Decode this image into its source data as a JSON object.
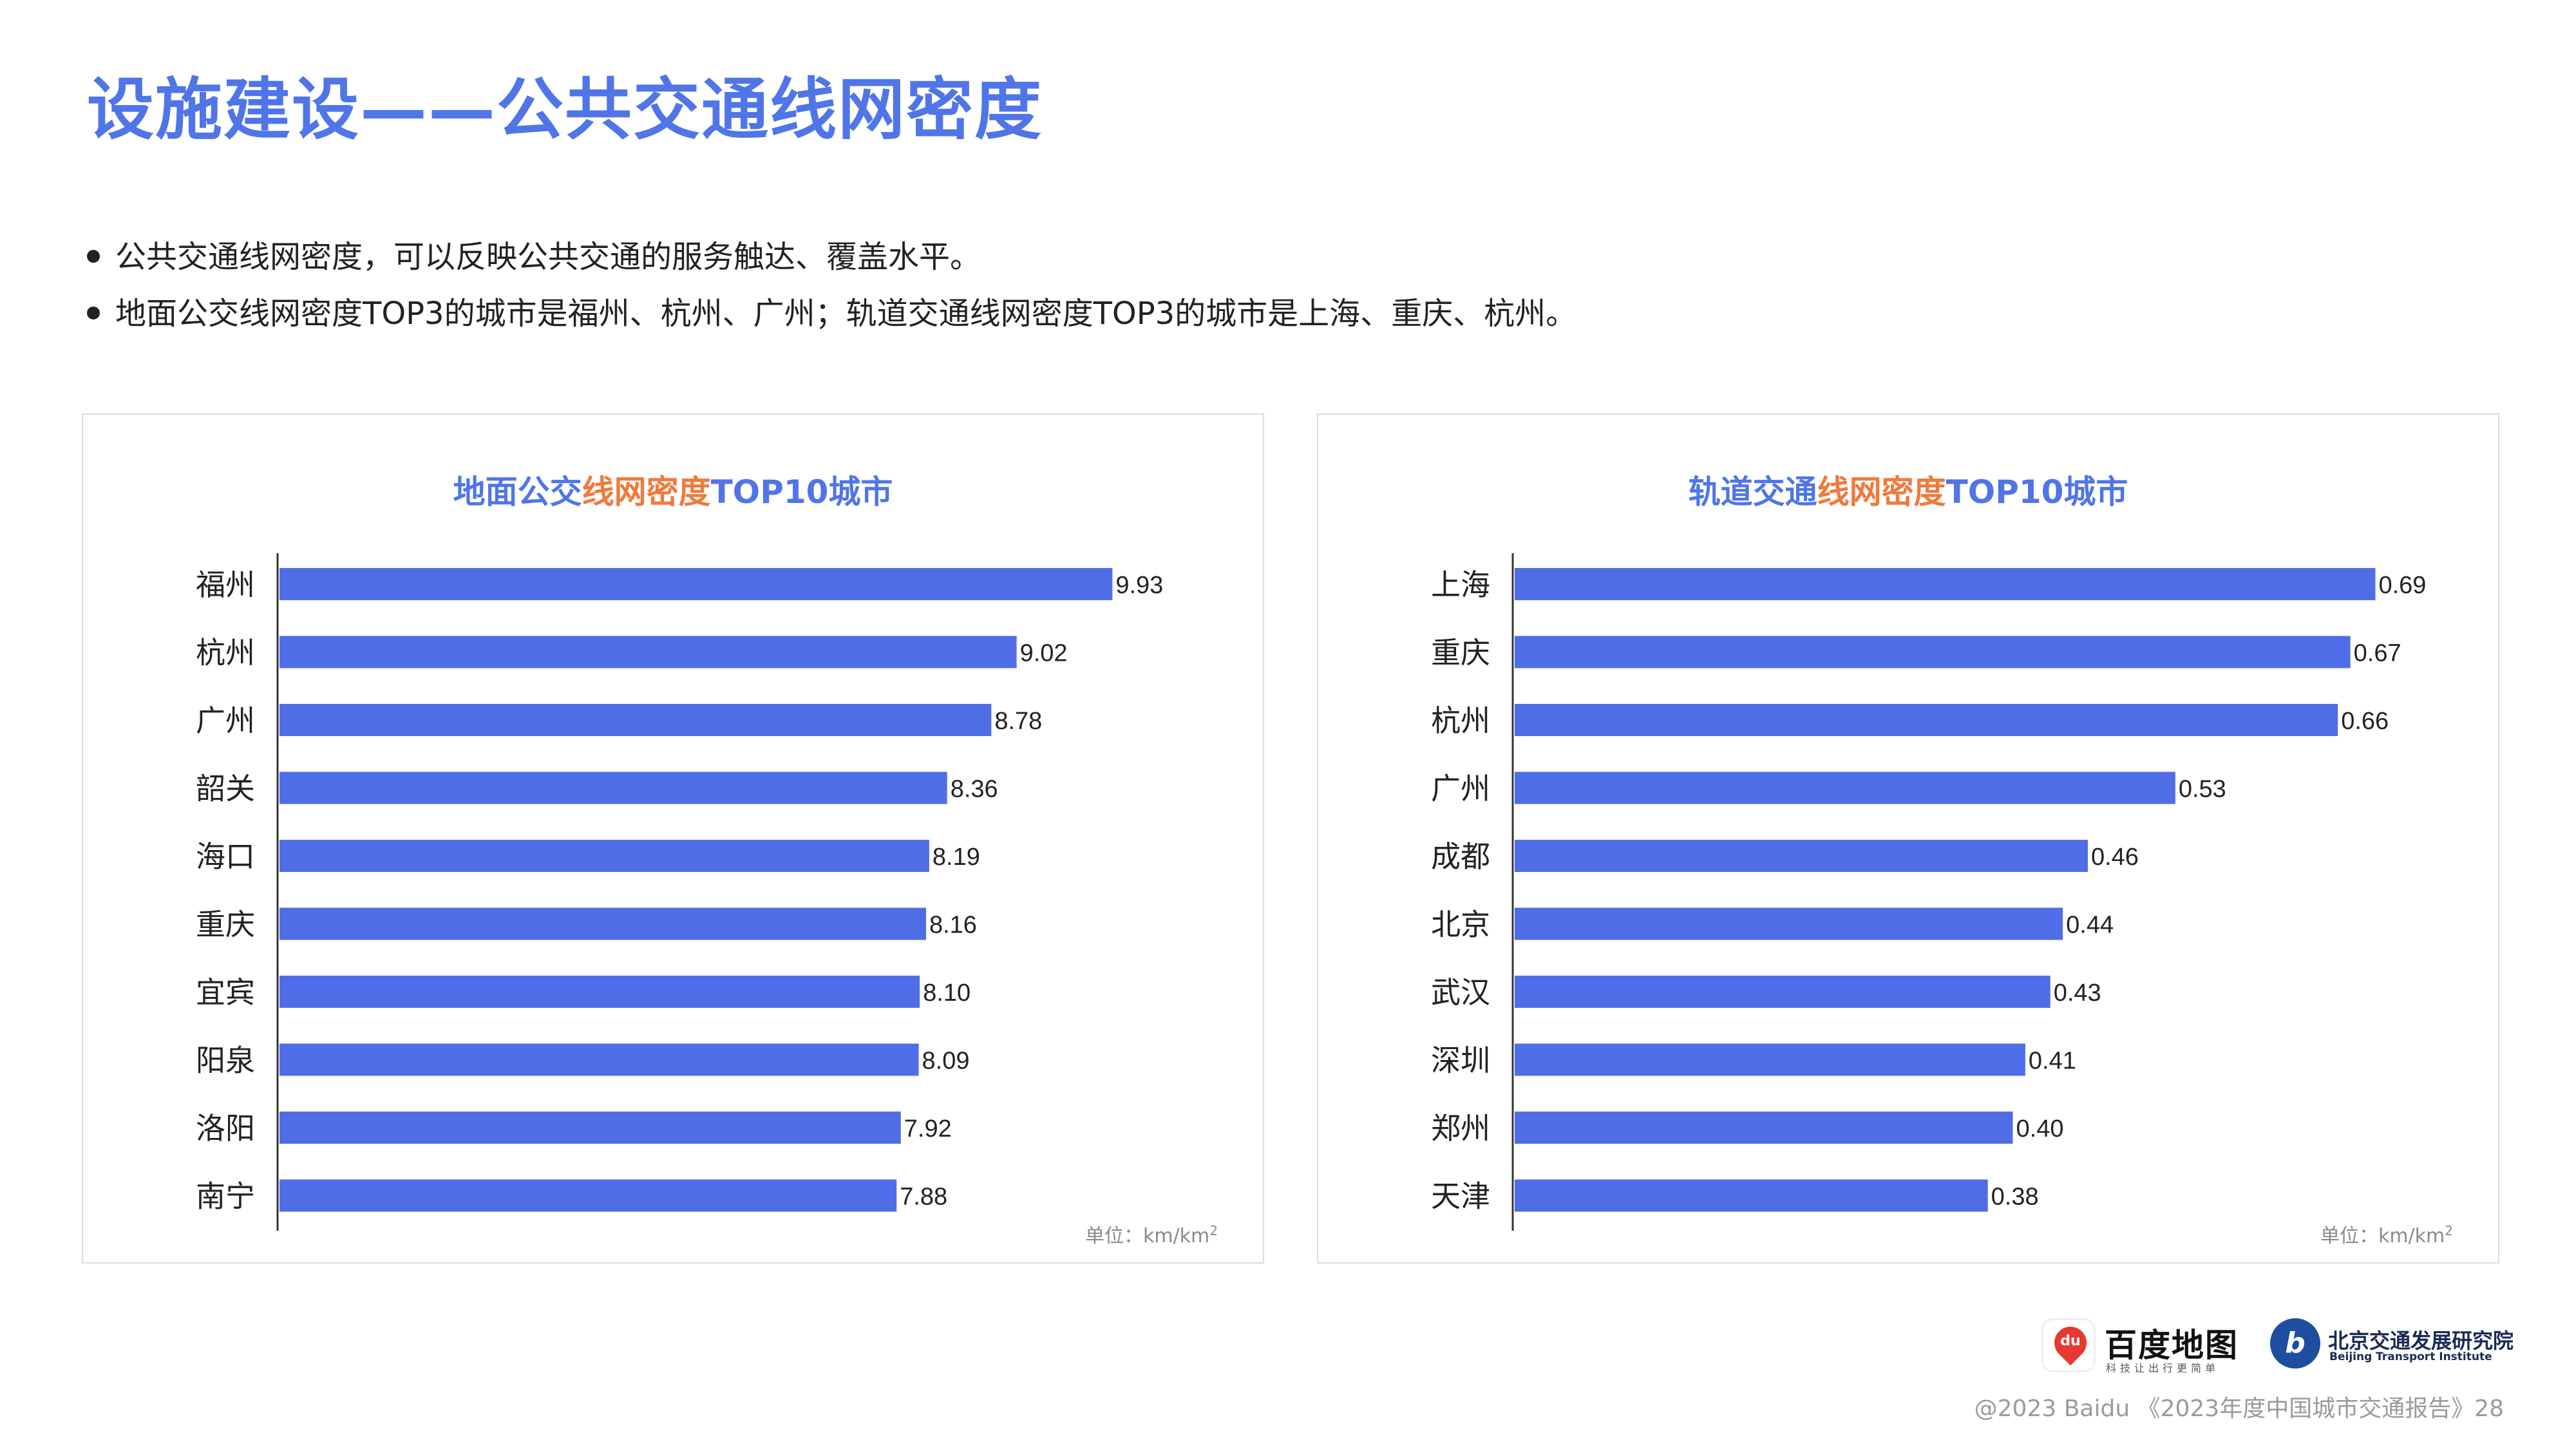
{
  "page": {
    "title": "设施建设——公共交通线网密度",
    "bullets": [
      "公共交通线网密度，可以反映公共交通的服务触达、覆盖水平。",
      "地面公交线网密度TOP3的城市是福州、杭州、广州；轨道交通线网密度TOP3的城市是上海、重庆、杭州。"
    ]
  },
  "colors": {
    "accent": "#4f75e8",
    "highlight": "#ef7a3c",
    "bar": "#506de8"
  },
  "chart_data": [
    {
      "type": "bar",
      "orientation": "horizontal",
      "title_parts": [
        "地面公交",
        "线网密度",
        "TOP10城市"
      ],
      "categories": [
        "福州",
        "杭州",
        "广州",
        "韶关",
        "海口",
        "重庆",
        "宜宾",
        "阳泉",
        "洛阳",
        "南宁"
      ],
      "values": [
        9.93,
        9.02,
        8.78,
        8.36,
        8.19,
        8.16,
        8.1,
        8.09,
        7.92,
        7.88
      ],
      "value_labels": [
        "9.93",
        "9.02",
        "8.78",
        "8.36",
        "8.19",
        "8.16",
        "8.10",
        "8.09",
        "7.92",
        "7.88"
      ],
      "unit_prefix": "单位：km/km",
      "unit_sup": "2",
      "xlim": [
        2.0,
        11.5
      ],
      "grid": false
    },
    {
      "type": "bar",
      "orientation": "horizontal",
      "title_parts": [
        "轨道交通",
        "线网密度",
        "TOP10城市"
      ],
      "categories": [
        "上海",
        "重庆",
        "杭州",
        "广州",
        "成都",
        "北京",
        "武汉",
        "深圳",
        "郑州",
        "天津"
      ],
      "values": [
        0.69,
        0.67,
        0.66,
        0.53,
        0.46,
        0.44,
        0.43,
        0.41,
        0.4,
        0.38
      ],
      "value_labels": [
        "0.69",
        "0.67",
        "0.66",
        "0.53",
        "0.46",
        "0.44",
        "0.43",
        "0.41",
        "0.40",
        "0.38"
      ],
      "unit_prefix": "单位：km/km",
      "unit_sup": "2",
      "xlim": [
        0.0,
        0.8
      ],
      "grid": false
    }
  ],
  "logos": {
    "baidu_name": "百度地图",
    "baidu_slogan": "科技让出行更简单",
    "baidu_mark_text": "du",
    "bti_name": "北京交通发展研究院",
    "bti_en": "Beijing Transport Institute",
    "bti_mark_text": "b"
  },
  "footer": "@2023 Baidu 《2023年度中国城市交通报告》28"
}
